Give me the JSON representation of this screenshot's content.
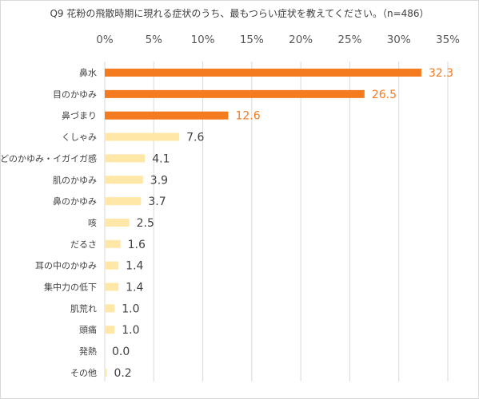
{
  "chart_data": {
    "type": "bar",
    "orientation": "horizontal",
    "title": "Q9 花粉の飛散時期に現れる症状のうち、最もつらい症状を教えてください。（n=486）",
    "xlim": [
      0,
      35
    ],
    "x_ticks": [
      "0%",
      "5%",
      "10%",
      "15%",
      "20%",
      "25%",
      "30%",
      "35%"
    ],
    "grid": "vertical",
    "categories": [
      "鼻水",
      "目のかゆみ",
      "鼻づまり",
      "くしゃみ",
      "のどのかゆみ・イガイガ感",
      "肌のかゆみ",
      "鼻のかゆみ",
      "咳",
      "だるさ",
      "耳の中のかゆみ",
      "集中力の低下",
      "肌荒れ",
      "頭痛",
      "発熱",
      "その他"
    ],
    "values": [
      32.3,
      26.5,
      12.6,
      7.6,
      4.1,
      3.9,
      3.7,
      2.5,
      1.6,
      1.4,
      1.4,
      1.0,
      1.0,
      0.0,
      0.2
    ],
    "value_labels": [
      "32.3",
      "26.5",
      "12.6",
      "7.6",
      "4.1",
      "3.9",
      "3.7",
      "2.5",
      "1.6",
      "1.4",
      "1.4",
      "1.0",
      "1.0",
      "0.0",
      "0.2"
    ],
    "highlight_top": 3,
    "colors": {
      "highlight": "#f47b20",
      "normal": "#ffe7a8",
      "grid": "#d9d9d9",
      "label_highlight": "#f47b20",
      "label_normal": "#404040"
    }
  }
}
